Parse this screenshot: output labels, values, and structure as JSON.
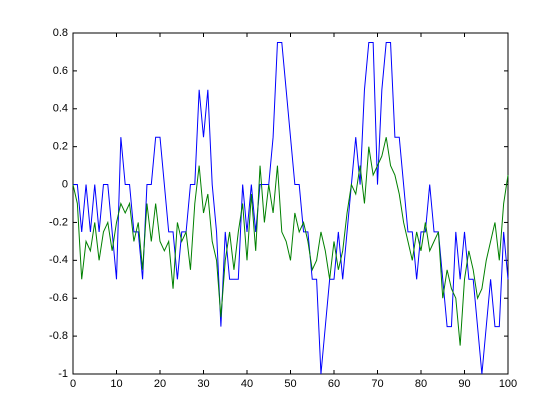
{
  "chart_data": {
    "type": "line",
    "x": [
      0,
      1,
      2,
      3,
      4,
      5,
      6,
      7,
      8,
      9,
      10,
      11,
      12,
      13,
      14,
      15,
      16,
      17,
      18,
      19,
      20,
      21,
      22,
      23,
      24,
      25,
      26,
      27,
      28,
      29,
      30,
      31,
      32,
      33,
      34,
      35,
      36,
      37,
      38,
      39,
      40,
      41,
      42,
      43,
      44,
      45,
      46,
      47,
      48,
      49,
      50,
      51,
      52,
      53,
      54,
      55,
      56,
      57,
      58,
      59,
      60,
      61,
      62,
      63,
      64,
      65,
      66,
      67,
      68,
      69,
      70,
      71,
      72,
      73,
      74,
      75,
      76,
      77,
      78,
      79,
      80,
      81,
      82,
      83,
      84,
      85,
      86,
      87,
      88,
      89,
      90,
      91,
      92,
      93,
      94,
      95,
      96,
      97,
      98,
      99,
      100
    ],
    "series": [
      {
        "color": "#0000ff",
        "values": [
          0,
          0,
          -0.25,
          0,
          -0.25,
          0,
          -0.25,
          0,
          0,
          -0.25,
          -0.5,
          0.25,
          0,
          0,
          -0.25,
          -0.25,
          -0.5,
          0,
          0,
          0.25,
          0.25,
          0,
          -0.25,
          -0.25,
          -0.5,
          -0.25,
          -0.25,
          0,
          0,
          0.5,
          0.25,
          0.5,
          0,
          -0.25,
          -0.75,
          -0.25,
          -0.5,
          -0.5,
          -0.5,
          0,
          -0.25,
          0,
          -0.25,
          0,
          0,
          0,
          0.25,
          0.75,
          0.75,
          0.5,
          0.25,
          0,
          0,
          -0.25,
          -0.25,
          -0.5,
          -0.5,
          -1,
          -0.75,
          -0.5,
          -0.5,
          -0.25,
          -0.5,
          -0.25,
          0,
          0.25,
          0,
          0.5,
          0.75,
          0.75,
          0,
          0.5,
          0.75,
          0.75,
          0.25,
          0.25,
          0,
          -0.25,
          -0.25,
          -0.5,
          -0.25,
          -0.25,
          0,
          -0.25,
          -0.25,
          -0.5,
          -0.75,
          -0.75,
          -0.25,
          -0.5,
          -0.25,
          -0.5,
          -0.5,
          -0.75,
          -1,
          -0.75,
          -0.5,
          -0.75,
          -0.75,
          -0.25,
          -0.5
        ]
      },
      {
        "color": "#008000",
        "values": [
          0,
          -0.1,
          -0.5,
          -0.3,
          -0.35,
          -0.2,
          -0.4,
          -0.25,
          -0.2,
          -0.35,
          -0.2,
          -0.1,
          -0.15,
          -0.1,
          -0.3,
          -0.2,
          -0.45,
          -0.1,
          -0.3,
          -0.1,
          -0.3,
          -0.35,
          -0.3,
          -0.55,
          -0.2,
          -0.3,
          -0.25,
          -0.45,
          -0.1,
          0.1,
          -0.15,
          -0.05,
          -0.3,
          -0.4,
          -0.7,
          -0.4,
          -0.25,
          -0.45,
          -0.25,
          -0.1,
          -0.4,
          -0.05,
          -0.35,
          0.1,
          -0.2,
          0,
          -0.15,
          0.1,
          -0.25,
          -0.3,
          -0.4,
          -0.15,
          -0.25,
          -0.2,
          -0.3,
          -0.45,
          -0.4,
          -0.25,
          -0.35,
          -0.5,
          -0.3,
          -0.45,
          -0.35,
          -0.15,
          0,
          -0.05,
          0.1,
          -0.1,
          0.2,
          0.05,
          0.1,
          0.15,
          0.25,
          0.1,
          0.05,
          -0.05,
          -0.2,
          -0.3,
          -0.4,
          -0.25,
          -0.35,
          -0.2,
          -0.35,
          -0.3,
          -0.25,
          -0.6,
          -0.45,
          -0.55,
          -0.6,
          -0.85,
          -0.5,
          -0.35,
          -0.45,
          -0.6,
          -0.55,
          -0.4,
          -0.3,
          -0.2,
          -0.4,
          -0.1,
          0.05
        ]
      }
    ],
    "xlim": [
      0,
      100
    ],
    "xticks": [
      0,
      10,
      20,
      30,
      40,
      50,
      60,
      70,
      80,
      90,
      100
    ],
    "ylim": [
      -1,
      0.8
    ],
    "yticks": [
      -1,
      -0.8,
      -0.6,
      -0.4,
      -0.2,
      0,
      0.2,
      0.4,
      0.6,
      0.8
    ]
  }
}
